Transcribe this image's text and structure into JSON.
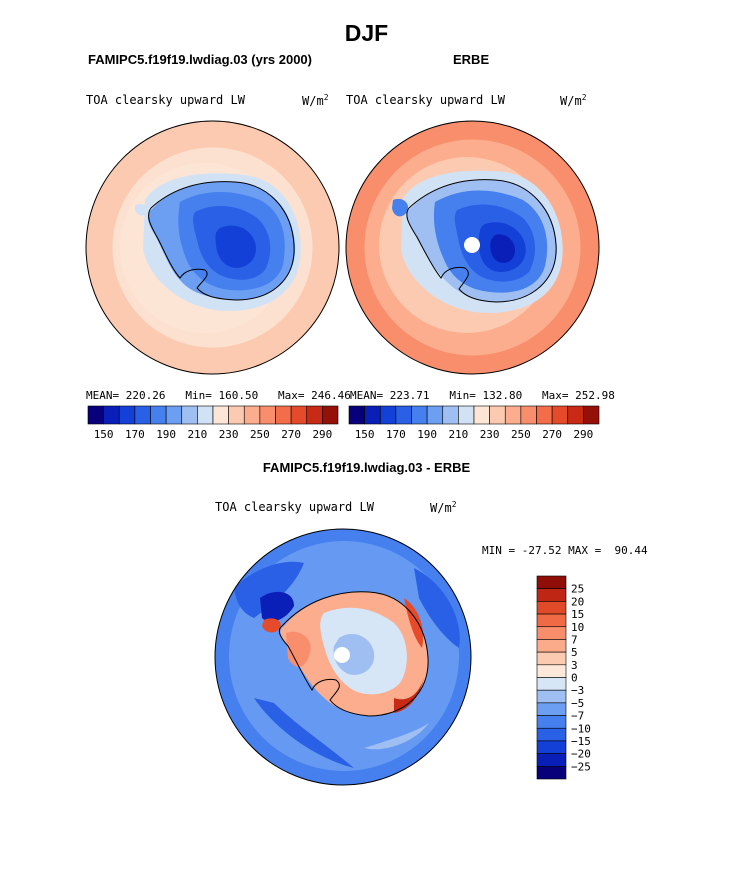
{
  "season": "DJF",
  "panels": [
    {
      "model_title": "FAMIPC5.f19f19.lwdiag.03 (yrs 2000)",
      "variable": "TOA clearsky upward LW",
      "units": "W/m",
      "units_exp": "2",
      "stats": "MEAN= 220.26   Min= 160.50   Max= 246.46"
    },
    {
      "model_title": "ERBE",
      "variable": "TOA clearsky upward LW",
      "units": "W/m",
      "units_exp": "2",
      "stats": "MEAN= 223.71   Min= 132.80   Max= 252.98"
    }
  ],
  "diff": {
    "title": "FAMIPC5.f19f19.lwdiag.03 - ERBE",
    "variable": "TOA clearsky upward LW",
    "units": "W/m",
    "units_exp": "2",
    "minmax": "MIN = -27.52 MAX =  90.44"
  },
  "colorbar_abs": {
    "colors": [
      "#08007a",
      "#0a1fb8",
      "#1340d6",
      "#2a60e6",
      "#4580ee",
      "#6c9ef2",
      "#9fbff3",
      "#d2e2f5",
      "#fde6d6",
      "#fccab0",
      "#fbad8d",
      "#f98e6c",
      "#f46d4a",
      "#e54b2b",
      "#c82a15",
      "#96100a"
    ],
    "tick_labels": [
      "150",
      "170",
      "190",
      "210",
      "230",
      "250",
      "270",
      "290"
    ]
  },
  "colorbar_diff": {
    "colors": [
      "#08007a",
      "#0a1fb8",
      "#1340d6",
      "#2a60e6",
      "#4580ee",
      "#6c9ef2",
      "#9fbff3",
      "#d6e6f6",
      "#fde8da",
      "#fccab0",
      "#fbab8a",
      "#f98e6c",
      "#f06a45",
      "#e04a28",
      "#c02614",
      "#8f0e08"
    ],
    "tick_labels": [
      "25",
      "20",
      "15",
      "10",
      "7",
      "5",
      "3",
      "0",
      "−3",
      "−5",
      "−7",
      "−10",
      "−15",
      "−20",
      "−25"
    ]
  }
}
